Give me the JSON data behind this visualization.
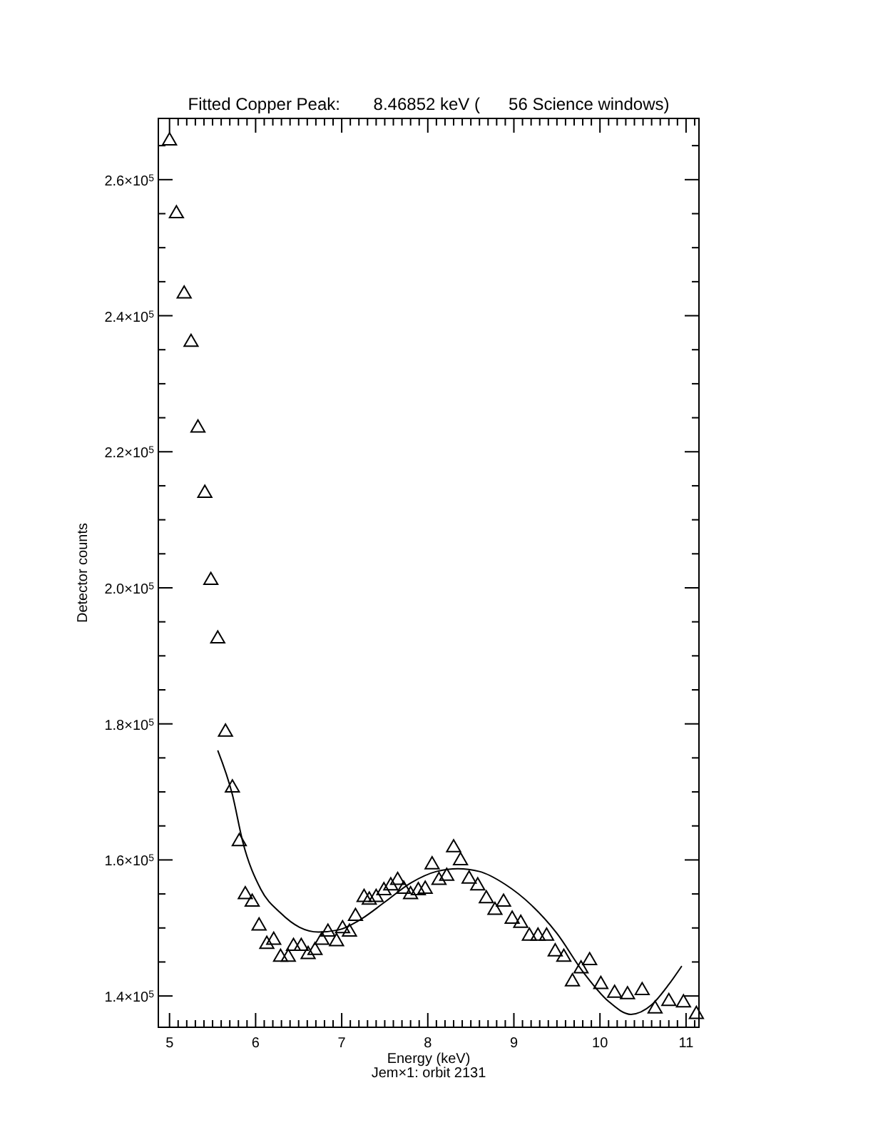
{
  "chart_data": {
    "type": "scatter",
    "title": "Fitted Copper Peak:       8.46852 keV (      56 Science windows)",
    "xlabel": "Energy (keV)",
    "ylabel": "Detector counts",
    "annotations": [
      "Jem×1: orbit 2131"
    ],
    "marker": "triangle",
    "xlim": [
      4.87,
      11.15
    ],
    "ylim": [
      135400,
      269000
    ],
    "xticks": [
      5,
      {
        "value": 5.1,
        "label": null
      },
      {
        "value": 5.2,
        "label": null
      },
      {
        "value": 5.3,
        "label": null
      },
      {
        "value": 5.4,
        "label": null
      },
      {
        "value": 5.5,
        "label": null
      },
      {
        "value": 5.6,
        "label": null
      },
      {
        "value": 5.7,
        "label": null
      },
      {
        "value": 5.8,
        "label": null
      },
      {
        "value": 5.9,
        "label": null
      },
      6,
      {
        "value": 6.1,
        "label": null
      },
      {
        "value": 6.2,
        "label": null
      },
      {
        "value": 6.3,
        "label": null
      },
      {
        "value": 6.4,
        "label": null
      },
      {
        "value": 6.5,
        "label": null
      },
      {
        "value": 6.6,
        "label": null
      },
      {
        "value": 6.7,
        "label": null
      },
      {
        "value": 6.8,
        "label": null
      },
      {
        "value": 6.9,
        "label": null
      },
      7,
      {
        "value": 7.1,
        "label": null
      },
      {
        "value": 7.2,
        "label": null
      },
      {
        "value": 7.3,
        "label": null
      },
      {
        "value": 7.4,
        "label": null
      },
      {
        "value": 7.5,
        "label": null
      },
      {
        "value": 7.6,
        "label": null
      },
      {
        "value": 7.7,
        "label": null
      },
      {
        "value": 7.8,
        "label": null
      },
      {
        "value": 7.9,
        "label": null
      },
      8,
      {
        "value": 8.1,
        "label": null
      },
      {
        "value": 8.2,
        "label": null
      },
      {
        "value": 8.3,
        "label": null
      },
      {
        "value": 8.4,
        "label": null
      },
      {
        "value": 8.5,
        "label": null
      },
      {
        "value": 8.6,
        "label": null
      },
      {
        "value": 8.7,
        "label": null
      },
      {
        "value": 8.8,
        "label": null
      },
      {
        "value": 8.9,
        "label": null
      },
      9,
      {
        "value": 9.1,
        "label": null
      },
      {
        "value": 9.2,
        "label": null
      },
      {
        "value": 9.3,
        "label": null
      },
      {
        "value": 9.4,
        "label": null
      },
      {
        "value": 9.5,
        "label": null
      },
      {
        "value": 9.6,
        "label": null
      },
      {
        "value": 9.7,
        "label": null
      },
      {
        "value": 9.8,
        "label": null
      },
      {
        "value": 9.9,
        "label": null
      },
      10,
      {
        "value": 10.1,
        "label": null
      },
      {
        "value": 10.2,
        "label": null
      },
      {
        "value": 10.3,
        "label": null
      },
      {
        "value": 10.4,
        "label": null
      },
      {
        "value": 10.5,
        "label": null
      },
      {
        "value": 10.6,
        "label": null
      },
      {
        "value": 10.7,
        "label": null
      },
      {
        "value": 10.8,
        "label": null
      },
      {
        "value": 10.9,
        "label": null
      },
      11,
      {
        "value": 11.1,
        "label": null
      }
    ],
    "yticks": [
      {
        "value": 140000,
        "label": "1.4×10$^{5}$"
      },
      {
        "value": 145000,
        "label": null
      },
      {
        "value": 150000,
        "label": null
      },
      {
        "value": 155000,
        "label": null
      },
      {
        "value": 160000,
        "label": "1.6×10$^{5}$"
      },
      {
        "value": 165000,
        "label": null
      },
      {
        "value": 170000,
        "label": null
      },
      {
        "value": 175000,
        "label": null
      },
      {
        "value": 180000,
        "label": "1.8×10$^{5}$"
      },
      {
        "value": 185000,
        "label": null
      },
      {
        "value": 190000,
        "label": null
      },
      {
        "value": 195000,
        "label": null
      },
      {
        "value": 200000,
        "label": "2.0×10$^{5}$"
      },
      {
        "value": 205000,
        "label": null
      },
      {
        "value": 210000,
        "label": null
      },
      {
        "value": 215000,
        "label": null
      },
      {
        "value": 220000,
        "label": "2.2×10$^{5}$"
      },
      {
        "value": 225000,
        "label": null
      },
      {
        "value": 230000,
        "label": null
      },
      {
        "value": 235000,
        "label": null
      },
      {
        "value": 240000,
        "label": "2.4×10$^{5}$"
      },
      {
        "value": 245000,
        "label": null
      },
      {
        "value": 250000,
        "label": null
      },
      {
        "value": 255000,
        "label": null
      },
      {
        "value": 260000,
        "label": "2.6×10$^{5}$"
      },
      {
        "value": 265000,
        "label": null
      }
    ],
    "series": [
      {
        "color": "#000000",
        "x": [
          5.0,
          5.08,
          5.17,
          5.25,
          5.33,
          5.41,
          5.48,
          5.56,
          5.65,
          5.73,
          5.81,
          5.88,
          5.96,
          6.04,
          6.13,
          6.21,
          6.29,
          6.38,
          6.44,
          6.53,
          6.61,
          6.69,
          6.77,
          6.84,
          6.94,
          7.01,
          7.09,
          7.16,
          7.26,
          7.32,
          7.4,
          7.49,
          7.57,
          7.65,
          7.72,
          7.8,
          7.89,
          7.97,
          8.05,
          8.13,
          8.22,
          8.3,
          8.38,
          8.48,
          8.58,
          8.68,
          8.78,
          8.88,
          8.98,
          9.08,
          9.18,
          9.28,
          9.38,
          9.48,
          9.58,
          9.68,
          9.78,
          9.88,
          10.01,
          10.17,
          10.32,
          10.49,
          10.64,
          10.8,
          10.97,
          11.12
        ],
        "values": [
          265700,
          255000,
          243200,
          236100,
          223500,
          213900,
          201100,
          192500,
          178800,
          170600,
          162700,
          154900,
          153800,
          150300,
          147600,
          148200,
          145700,
          145700,
          147300,
          147300,
          146100,
          146700,
          148200,
          149400,
          148000,
          149900,
          149400,
          151700,
          154500,
          154100,
          154500,
          155500,
          156200,
          157000,
          155700,
          154900,
          155500,
          155700,
          159300,
          157000,
          157600,
          161800,
          159900,
          157200,
          156200,
          154300,
          152600,
          153800,
          151300,
          150700,
          148800,
          148800,
          148800,
          146500,
          145700,
          142100,
          144000,
          145200,
          141700,
          140400,
          140200,
          140800,
          138100,
          139200,
          139000,
          137300
        ]
      },
      {
        "type": "line",
        "color": "#000000",
        "marker": "none",
        "x": [
          5.56,
          5.73,
          5.85,
          6.06,
          6.29,
          6.51,
          6.73,
          6.96,
          7.2,
          7.5,
          7.8,
          8.1,
          8.35,
          8.6,
          8.9,
          9.2,
          9.5,
          9.8,
          10.1,
          10.36,
          10.6,
          10.8,
          10.95
        ],
        "values": [
          176100,
          169600,
          162700,
          155700,
          152200,
          150100,
          149400,
          149700,
          151100,
          153800,
          156600,
          158300,
          158700,
          158300,
          156400,
          153400,
          149200,
          143600,
          139200,
          137300,
          138700,
          141700,
          144400
        ]
      }
    ]
  }
}
